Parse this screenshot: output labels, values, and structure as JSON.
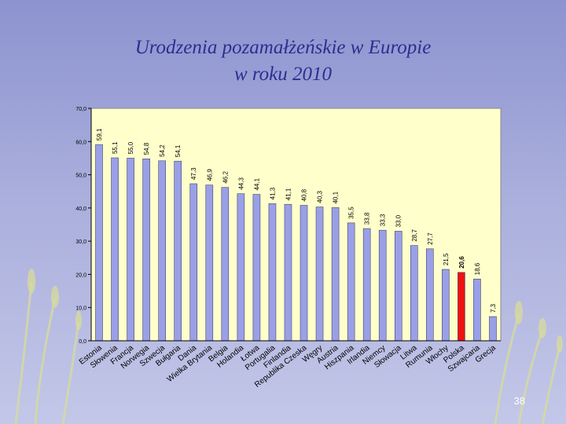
{
  "slide": {
    "title_line1": "Urodzenia pozamałżeńskie w Europie",
    "title_line2": "w roku 2010",
    "page_number": "38"
  },
  "colors": {
    "plot_background": "#ffffcc",
    "bar": "#9aa0e8",
    "bar_highlight": "#ee1111",
    "title": "#2b2f8f"
  },
  "chart_data": {
    "type": "bar",
    "title": "",
    "xlabel": "",
    "ylabel": "",
    "ylim": [
      0,
      70
    ],
    "yticks": [
      "0,0",
      "10,0",
      "20,0",
      "30,0",
      "40,0",
      "50,0",
      "60,0",
      "70,0"
    ],
    "grid": false,
    "legend": "none",
    "categories": [
      "Estonia",
      "Słowenia",
      "Francja",
      "Norwegia",
      "Szwecja",
      "Bułgaria",
      "Dania",
      "Wielka Brytania",
      "Belgia",
      "Holandia",
      "Łotwa",
      "Portugalia",
      "Finlandia",
      "Republika Czeska",
      "Węgry",
      "Austria",
      "Hiszpania",
      "Irlandia",
      "Niemcy",
      "Słowacja",
      "Litwa",
      "Rumunia",
      "Włochy",
      "Polska",
      "Szwajcaria",
      "Grecja"
    ],
    "values": [
      59.1,
      55.1,
      55.0,
      54.8,
      54.2,
      54.1,
      47.3,
      46.9,
      46.2,
      44.3,
      44.1,
      41.3,
      41.1,
      40.8,
      40.3,
      40.1,
      35.5,
      33.8,
      33.3,
      33.0,
      28.7,
      27.7,
      21.5,
      20.6,
      18.6,
      7.3
    ],
    "value_labels": [
      "59,1",
      "55,1",
      "55,0",
      "54,8",
      "54,2",
      "54,1",
      "47,3",
      "46,9",
      "46,2",
      "44,3",
      "44,1",
      "41,3",
      "41,1",
      "40,8",
      "40,3",
      "40,1",
      "35,5",
      "33,8",
      "33,3",
      "33,0",
      "28,7",
      "27,7",
      "21,5",
      "20,6",
      "18,6",
      "7,3"
    ],
    "highlighted_category": "Polska"
  }
}
